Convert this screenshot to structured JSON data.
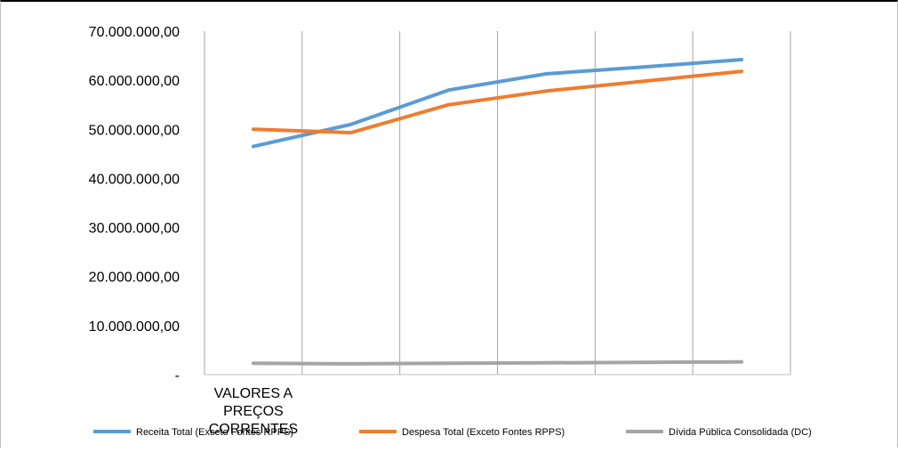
{
  "chart_data": {
    "type": "line",
    "title": "",
    "xlabel": "",
    "ylabel": "",
    "ylim": [
      0,
      70000000
    ],
    "y_ticks": [
      {
        "value": 0,
        "label": "-"
      },
      {
        "value": 10000000,
        "label": "10.000.000,00"
      },
      {
        "value": 20000000,
        "label": "20.000.000,00"
      },
      {
        "value": 30000000,
        "label": "30.000.000,00"
      },
      {
        "value": 40000000,
        "label": "40.000.000,00"
      },
      {
        "value": 50000000,
        "label": "50.000.000,00"
      },
      {
        "value": 60000000,
        "label": "60.000.000,00"
      },
      {
        "value": 70000000,
        "label": "70.000.000,00"
      }
    ],
    "category_count": 6,
    "category_labels": [
      "VALORES A PREÇOS CORRENTES",
      "",
      "",
      "",
      "",
      ""
    ],
    "grid": {
      "vertical": true,
      "horizontal": false
    },
    "legend_position": "bottom",
    "series": [
      {
        "name": "Receita Total (Exceto Fontes RPPS)",
        "color": "#5b9bd5",
        "values": [
          46500000,
          51000000,
          58000000,
          61300000,
          62700000,
          64200000
        ]
      },
      {
        "name": "Despesa Total (Exceto Fontes RPPS)",
        "color": "#ed7d31",
        "values": [
          50000000,
          49300000,
          55000000,
          57800000,
          59800000,
          61800000
        ]
      },
      {
        "name": "Dívida Pública Consolidada (DC)",
        "color": "#a5a5a5",
        "values": [
          2300000,
          2200000,
          2300000,
          2400000,
          2500000,
          2600000
        ]
      }
    ]
  }
}
